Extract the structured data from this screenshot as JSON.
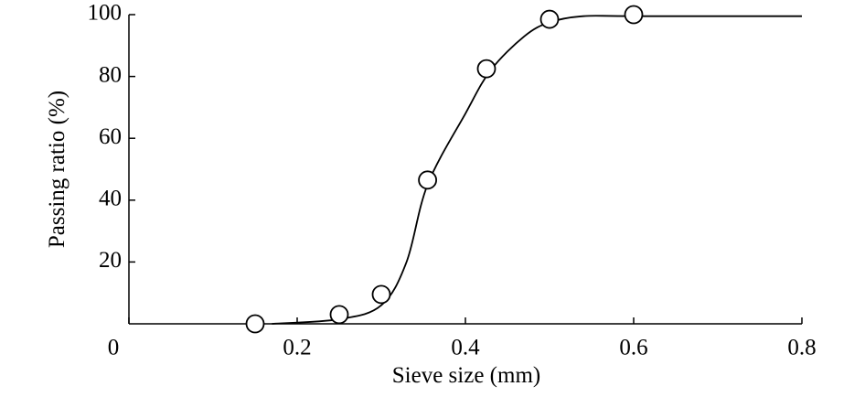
{
  "chart_data": {
    "type": "scatter",
    "xlabel": "Sieve size (mm)",
    "ylabel": "Passing ratio (%)",
    "xlim": [
      0,
      0.8
    ],
    "ylim": [
      0,
      100
    ],
    "xticks": [
      0,
      0.2,
      0.4,
      0.6,
      0.8
    ],
    "yticks": [
      20,
      40,
      60,
      80,
      100
    ],
    "grid": false,
    "series": [
      {
        "color": "#000000",
        "markers": false,
        "x": [
          0.17,
          0.25,
          0.3,
          0.33,
          0.355,
          0.4,
          0.43,
          0.47,
          0.5,
          0.54,
          0.6,
          0.8
        ],
        "values": [
          0,
          1.5,
          6,
          20,
          45,
          68,
          82,
          93,
          97.5,
          99.5,
          99.5,
          99.5
        ]
      },
      {
        "color": "#000000",
        "markers": true,
        "x": [
          0.15,
          0.25,
          0.3,
          0.355,
          0.425,
          0.5,
          0.6
        ],
        "values": [
          0,
          3,
          9.5,
          46.5,
          82.5,
          98.5,
          100
        ]
      }
    ]
  }
}
